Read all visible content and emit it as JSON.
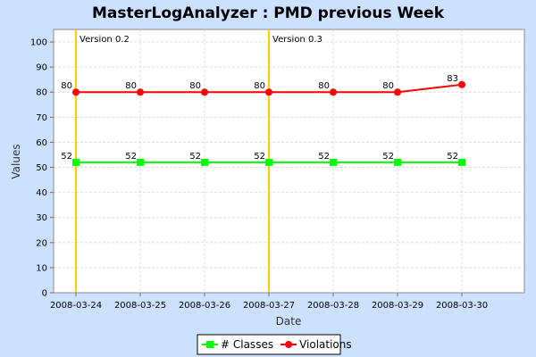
{
  "chart_data": {
    "type": "line",
    "title": "MasterLogAnalyzer : PMD previous Week",
    "xlabel": "Date",
    "ylabel": "Values",
    "ylim": [
      0,
      105
    ],
    "yticks": [
      0,
      10,
      20,
      30,
      40,
      50,
      60,
      70,
      80,
      90,
      100
    ],
    "x": [
      "2008-03-24",
      "2008-03-25",
      "2008-03-26",
      "2008-03-27",
      "2008-03-28",
      "2008-03-29",
      "2008-03-30"
    ],
    "grid": true,
    "legend_position": "bottom",
    "series": [
      {
        "name": "# Classes",
        "values": [
          52,
          52,
          52,
          52,
          52,
          52,
          52
        ],
        "color": "#00ff00",
        "marker": "square"
      },
      {
        "name": "Violations",
        "values": [
          80,
          80,
          80,
          80,
          80,
          80,
          83
        ],
        "color": "#ff0000",
        "marker": "circle"
      }
    ],
    "markers": [
      {
        "x": "2008-03-24",
        "label": "Version 0.2",
        "color": "#ffcc00"
      },
      {
        "x": "2008-03-27",
        "label": "Version 0.3",
        "color": "#ffcc00"
      }
    ]
  }
}
